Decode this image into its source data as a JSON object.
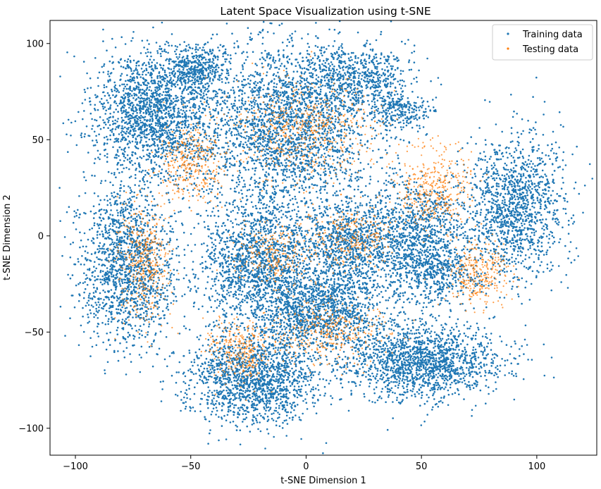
{
  "chart_data": {
    "type": "scatter",
    "title": "Latent Space Visualization using t-SNE",
    "xlabel": "t-SNE Dimension 1",
    "ylabel": "t-SNE Dimension 2",
    "xlim": [
      -111,
      126
    ],
    "ylim": [
      -114,
      112
    ],
    "xticks": [
      -100,
      -50,
      0,
      50,
      100
    ],
    "yticks": [
      100,
      50,
      0,
      -50,
      -100
    ],
    "grid": false,
    "legend_position": "top-right",
    "series": [
      {
        "name": "Training data",
        "color": "#1f77b4",
        "clusters": [
          {
            "x": -66,
            "y": 63,
            "sx": 15,
            "sy": 20,
            "n": 1800
          },
          {
            "x": -48,
            "y": 87,
            "sx": 8,
            "sy": 7,
            "n": 400
          },
          {
            "x": -8,
            "y": 58,
            "sx": 22,
            "sy": 26,
            "n": 2400
          },
          {
            "x": 22,
            "y": 82,
            "sx": 14,
            "sy": 10,
            "n": 600
          },
          {
            "x": 40,
            "y": 65,
            "sx": 8,
            "sy": 6,
            "n": 250
          },
          {
            "x": 90,
            "y": 15,
            "sx": 13,
            "sy": 22,
            "n": 1300
          },
          {
            "x": 46,
            "y": 5,
            "sx": 14,
            "sy": 14,
            "n": 800
          },
          {
            "x": -78,
            "y": -15,
            "sx": 12,
            "sy": 24,
            "n": 1500
          },
          {
            "x": -22,
            "y": -12,
            "sx": 15,
            "sy": 18,
            "n": 1400
          },
          {
            "x": 18,
            "y": -4,
            "sx": 13,
            "sy": 15,
            "n": 900
          },
          {
            "x": 55,
            "y": -18,
            "sx": 12,
            "sy": 10,
            "n": 600
          },
          {
            "x": 5,
            "y": -38,
            "sx": 18,
            "sy": 12,
            "n": 1300
          },
          {
            "x": -22,
            "y": -74,
            "sx": 17,
            "sy": 14,
            "n": 1600
          },
          {
            "x": 50,
            "y": -65,
            "sx": 20,
            "sy": 12,
            "n": 1600
          }
        ]
      },
      {
        "name": "Testing data",
        "color": "#ff7f0e",
        "clusters": [
          {
            "x": -50,
            "y": 40,
            "sx": 8,
            "sy": 13,
            "n": 350
          },
          {
            "x": 0,
            "y": 55,
            "sx": 18,
            "sy": 15,
            "n": 550
          },
          {
            "x": -70,
            "y": -15,
            "sx": 7,
            "sy": 18,
            "n": 400
          },
          {
            "x": -15,
            "y": -10,
            "sx": 10,
            "sy": 10,
            "n": 250
          },
          {
            "x": 20,
            "y": 0,
            "sx": 10,
            "sy": 9,
            "n": 250
          },
          {
            "x": 55,
            "y": 25,
            "sx": 10,
            "sy": 13,
            "n": 400
          },
          {
            "x": 75,
            "y": -20,
            "sx": 8,
            "sy": 10,
            "n": 300
          },
          {
            "x": 10,
            "y": -50,
            "sx": 14,
            "sy": 10,
            "n": 350
          },
          {
            "x": -28,
            "y": -60,
            "sx": 8,
            "sy": 10,
            "n": 300
          }
        ]
      }
    ]
  }
}
